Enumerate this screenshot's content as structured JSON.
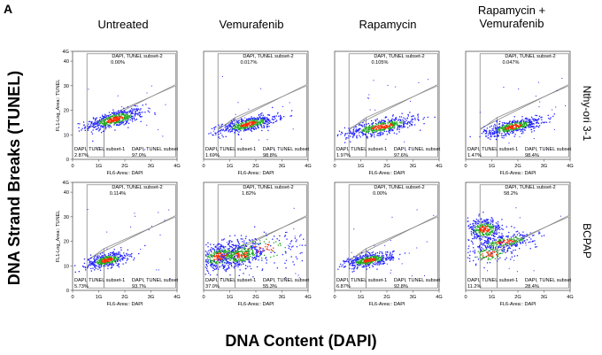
{
  "panel_letter": "A",
  "y_axis_label": "DNA Strand Breaks (TUNEL)",
  "x_axis_label": "DNA Content (DAPI)",
  "column_titles": [
    "Untreated",
    "Vemurafenib",
    "Rapamycin",
    "Rapamycin +\nVemurafenib"
  ],
  "row_labels": [
    "Nthy-ori 3-1",
    "BCPAP"
  ],
  "colors": {
    "low": "#2222ff",
    "mid": "#22aa22",
    "high": "#ff2a00",
    "axis": "#555555",
    "gate": "#888888"
  },
  "chart_data": [
    {
      "type": "scatter",
      "row": "Nthy-ori 3-1",
      "column": "Untreated",
      "xlabel": "FL6-Area:: DAPI",
      "ylabel": "FL1-Log_Area:: TUNEL",
      "x_ticks": [
        "0",
        "1G",
        "2G",
        "3G",
        "4G"
      ],
      "y_ticks": [
        "0",
        "10",
        "20",
        "30",
        "40",
        "4G"
      ],
      "ylabel_shown": true,
      "gates": [
        {
          "name": "DAPI, TUNEL subset-2",
          "value": "0.00%"
        },
        {
          "name": "DAPI, TUNEL subset-1",
          "value": "2.87%"
        },
        {
          "name": "DAPI, TUNEL subset",
          "value": "97.0%"
        }
      ],
      "clusters": [
        {
          "x": 1.6,
          "y": 16.5,
          "sx": 0.55,
          "sy": 1.6,
          "n": 520,
          "tilt": 1.0
        }
      ]
    },
    {
      "type": "scatter",
      "row": "Nthy-ori 3-1",
      "column": "Vemurafenib",
      "xlabel": "FL6-Area:: DAPI",
      "ylabel": "",
      "x_ticks": [
        "0",
        "1G",
        "2G",
        "3G",
        "4G"
      ],
      "y_ticks": [],
      "ylabel_shown": false,
      "gates": [
        {
          "name": "DAPI, TUNEL subset-2",
          "value": "0.017%"
        },
        {
          "name": "DAPI, TUNEL subset-1",
          "value": "1.69%"
        },
        {
          "name": "DAPI, TUNEL subset",
          "value": "98.8%"
        }
      ],
      "clusters": [
        {
          "x": 1.7,
          "y": 14.5,
          "sx": 0.55,
          "sy": 1.4,
          "n": 520,
          "tilt": 0.9
        }
      ]
    },
    {
      "type": "scatter",
      "row": "Nthy-ori 3-1",
      "column": "Rapamycin",
      "xlabel": "FL6-Area:: DAPI",
      "ylabel": "",
      "x_ticks": [
        "0",
        "1G",
        "2G",
        "3G",
        "4G"
      ],
      "y_ticks": [],
      "ylabel_shown": false,
      "gates": [
        {
          "name": "DAPI, TUNEL subset-2",
          "value": "0.105%"
        },
        {
          "name": "DAPI, TUNEL subset-1",
          "value": "1.97%"
        },
        {
          "name": "DAPI, TUNEL subset",
          "value": "97.6%"
        }
      ],
      "clusters": [
        {
          "x": 1.8,
          "y": 13.5,
          "sx": 0.7,
          "sy": 1.5,
          "n": 520,
          "tilt": 0.8
        }
      ]
    },
    {
      "type": "scatter",
      "row": "Nthy-ori 3-1",
      "column": "Rapamycin + Vemurafenib",
      "xlabel": "FL6-Area:: DAPI",
      "ylabel": "",
      "x_ticks": [
        "0",
        "1G",
        "2G",
        "3G",
        "4G"
      ],
      "y_ticks": [],
      "ylabel_shown": false,
      "gates": [
        {
          "name": "DAPI, TUNEL subset-2",
          "value": "0.047%"
        },
        {
          "name": "DAPI, TUNEL subset-1",
          "value": "1.47%"
        },
        {
          "name": "DAPI, TUNEL subset",
          "value": "98.4%"
        }
      ],
      "clusters": [
        {
          "x": 1.8,
          "y": 13.5,
          "sx": 0.55,
          "sy": 1.4,
          "n": 520,
          "tilt": 0.9
        }
      ]
    },
    {
      "type": "scatter",
      "row": "BCPAP",
      "column": "Untreated",
      "xlabel": "FL6-Area:: DAPI",
      "ylabel": "FL1-Log_Area:: TUNEL",
      "x_ticks": [
        "0",
        "1G",
        "2G",
        "3G",
        "4G"
      ],
      "y_ticks": [
        "0",
        "10",
        "20",
        "30",
        "40",
        "4G"
      ],
      "ylabel_shown": true,
      "gates": [
        {
          "name": "DAPI, TUNEL subset-2",
          "value": "0.114%"
        },
        {
          "name": "DAPI, TUNEL subset-1",
          "value": "5.73%"
        },
        {
          "name": "DAPI, TUNEL subset",
          "value": "93.7%"
        }
      ],
      "clusters": [
        {
          "x": 1.3,
          "y": 12.5,
          "sx": 0.4,
          "sy": 1.4,
          "n": 420,
          "tilt": 0.8
        }
      ]
    },
    {
      "type": "scatter",
      "row": "BCPAP",
      "column": "Vemurafenib",
      "xlabel": "FL6-Area:: DAPI",
      "ylabel": "",
      "x_ticks": [
        "0",
        "1G",
        "2G",
        "3G",
        "4G"
      ],
      "y_ticks": [],
      "ylabel_shown": false,
      "gates": [
        {
          "name": "DAPI, TUNEL subset-2",
          "value": "1.82%"
        },
        {
          "name": "DAPI, TUNEL subset-1",
          "value": "37.0%"
        },
        {
          "name": "DAPI, TUNEL subset",
          "value": "55.3%"
        }
      ],
      "clusters": [
        {
          "x": 0.6,
          "y": 14.0,
          "sx": 0.45,
          "sy": 2.6,
          "n": 360,
          "tilt": 0.6
        },
        {
          "x": 1.4,
          "y": 14.5,
          "sx": 0.5,
          "sy": 2.2,
          "n": 360,
          "tilt": 0.7
        },
        {
          "x": 2.2,
          "y": 17.0,
          "sx": 0.9,
          "sy": 3.5,
          "n": 160,
          "tilt": 0.3
        }
      ]
    },
    {
      "type": "scatter",
      "row": "BCPAP",
      "column": "Rapamycin",
      "xlabel": "FL6-Area:: DAPI",
      "ylabel": "",
      "x_ticks": [
        "0",
        "1G",
        "2G",
        "3G",
        "4G"
      ],
      "y_ticks": [],
      "ylabel_shown": false,
      "gates": [
        {
          "name": "DAPI, TUNEL subset-2",
          "value": "0.00%"
        },
        {
          "name": "DAPI, TUNEL subset-1",
          "value": "6.87%"
        },
        {
          "name": "DAPI, TUNEL subset",
          "value": "92.8%"
        }
      ],
      "clusters": [
        {
          "x": 1.3,
          "y": 12.5,
          "sx": 0.45,
          "sy": 1.3,
          "n": 460,
          "tilt": 0.7
        }
      ]
    },
    {
      "type": "scatter",
      "row": "BCPAP",
      "column": "Rapamycin + Vemurafenib",
      "xlabel": "FL6-Area:: DAPI",
      "ylabel": "",
      "x_ticks": [
        "0",
        "1G",
        "2G",
        "3G",
        "4G"
      ],
      "y_ticks": [],
      "ylabel_shown": false,
      "gates": [
        {
          "name": "DAPI, TUNEL subset-2",
          "value": "58.2%"
        },
        {
          "name": "DAPI, TUNEL subset-1",
          "value": "11.2%"
        },
        {
          "name": "DAPI, TUNEL subset",
          "value": "28.4%"
        }
      ],
      "clusters": [
        {
          "x": 0.7,
          "y": 25.0,
          "sx": 0.35,
          "sy": 2.3,
          "n": 360,
          "tilt": 0.0
        },
        {
          "x": 1.5,
          "y": 20.0,
          "sx": 0.6,
          "sy": 1.4,
          "n": 280,
          "tilt": 0.6
        },
        {
          "x": 0.9,
          "y": 15.0,
          "sx": 0.5,
          "sy": 2.0,
          "n": 120,
          "tilt": 0.3
        }
      ]
    }
  ]
}
